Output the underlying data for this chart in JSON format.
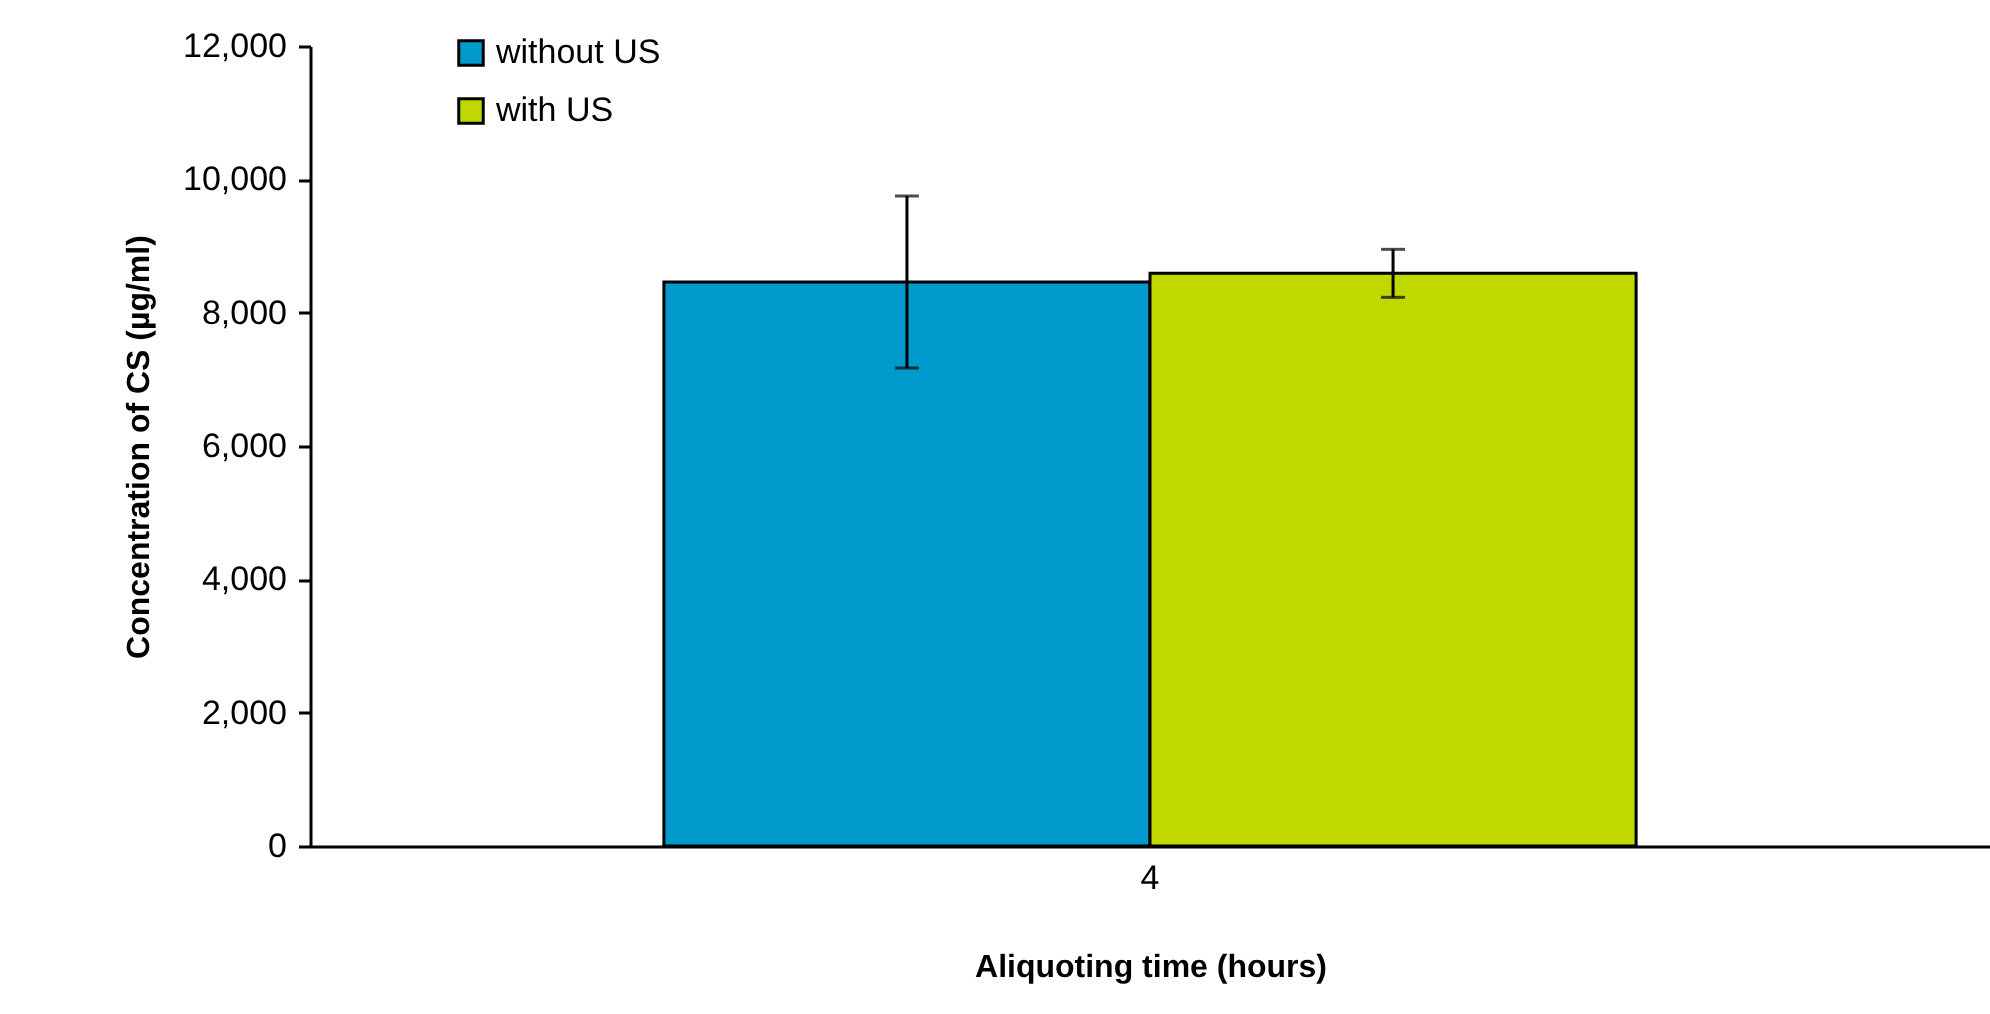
{
  "chart_data": {
    "type": "bar",
    "xlabel": "Aliquoting time (hours)",
    "ylabel": "Concentration of CS (µg/ml)",
    "categories": [
      "4"
    ],
    "series": [
      {
        "name": "without US",
        "color": "#0099cc",
        "values": [
          8460
        ],
        "errors": [
          1290
        ]
      },
      {
        "name": "with US",
        "color": "#c0d800",
        "values": [
          8590
        ],
        "errors": [
          360
        ]
      }
    ],
    "ylim": [
      0,
      12000
    ],
    "yticks": [
      0,
      {
        "value": 2000,
        "label": "2,000"
      },
      {
        "value": 4000,
        "label": "4,000"
      },
      {
        "value": 6000,
        "label": "6,000"
      },
      {
        "value": 8000,
        "label": "8,000"
      },
      {
        "value": 10000,
        "label": "10,000"
      },
      {
        "value": 12000,
        "label": "12,000"
      }
    ],
    "grid": false,
    "legend": "top left"
  }
}
